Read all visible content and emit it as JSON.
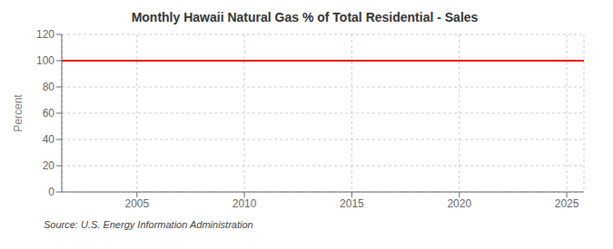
{
  "chart_data": {
    "type": "line",
    "title": "Monthly Hawaii Natural Gas % of Total Residential - Sales",
    "ylabel": "Percent",
    "annotations": [
      "Source: U.S. Energy Information Administration"
    ],
    "x": [
      2001.5,
      2025.8
    ],
    "values": [
      100,
      100
    ],
    "color": "#ee0000",
    "xlim": [
      2001.5,
      2025.8
    ],
    "xticks": [
      2005,
      2010,
      2015,
      2020,
      2025
    ],
    "ylim": [
      0,
      120
    ],
    "yticks": [
      0,
      20,
      40,
      60,
      80,
      100,
      120
    ],
    "grid": true
  }
}
